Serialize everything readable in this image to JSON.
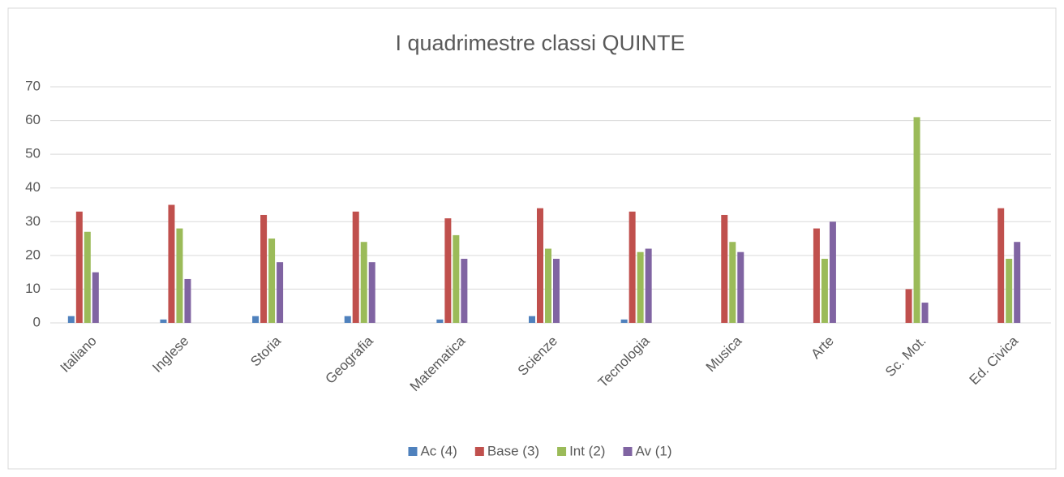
{
  "chart_data": {
    "type": "bar",
    "title": "I quadrimestre classi QUINTE",
    "categories": [
      "Italiano",
      "Inglese",
      "Storia",
      "Geografia",
      "Matematica",
      "Scienze",
      "Tecnologia",
      "Musica",
      "Arte",
      "Sc. Mot.",
      "Ed. Civica"
    ],
    "series": [
      {
        "name": "Ac (4)",
        "color": "#4f81bd",
        "values": [
          2,
          1,
          2,
          2,
          1,
          2,
          1,
          0,
          0,
          0,
          0
        ]
      },
      {
        "name": "Base (3)",
        "color": "#c0504d",
        "values": [
          33,
          35,
          32,
          33,
          31,
          34,
          33,
          32,
          28,
          10,
          34
        ]
      },
      {
        "name": "Int (2)",
        "color": "#9bbb59",
        "values": [
          27,
          28,
          25,
          24,
          26,
          22,
          21,
          24,
          19,
          61,
          19
        ]
      },
      {
        "name": "Av (1)",
        "color": "#8064a2",
        "values": [
          15,
          13,
          18,
          18,
          19,
          19,
          22,
          21,
          30,
          6,
          24
        ]
      }
    ],
    "ylim": [
      0,
      70
    ],
    "yticks": [
      0,
      10,
      20,
      30,
      40,
      50,
      60,
      70
    ],
    "grid": true,
    "legend": "bottom"
  }
}
